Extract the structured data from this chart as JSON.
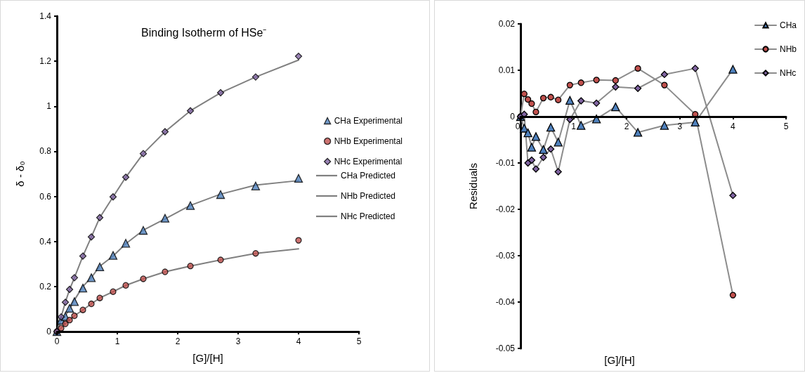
{
  "chart_data": [
    {
      "type": "scatter",
      "title": "Binding Isotherm of HSe⁻",
      "xlabel": "[G]/[H]",
      "ylabel": "δ - δ₀",
      "x": [
        0,
        0.07,
        0.14,
        0.21,
        0.29,
        0.43,
        0.57,
        0.71,
        0.93,
        1.14,
        1.43,
        1.79,
        2.21,
        2.71,
        3.29,
        4.0
      ],
      "xlim": [
        0,
        5
      ],
      "xticks": [
        0,
        1,
        2,
        3,
        4,
        5
      ],
      "ylim": [
        0,
        1.4
      ],
      "yticks": [
        0,
        0.2,
        0.4,
        0.6,
        0.8,
        1,
        1.2,
        1.4
      ],
      "grid": false,
      "legend": "right",
      "series": [
        {
          "name": "CHa Experimental",
          "marker": "triangle",
          "color": "#4f81bd",
          "values": [
            0,
            0.05,
            0.067,
            0.103,
            0.133,
            0.193,
            0.239,
            0.287,
            0.338,
            0.392,
            0.449,
            0.503,
            0.559,
            0.608,
            0.646,
            0.68
          ]
        },
        {
          "name": "NHb Experimental",
          "marker": "circle",
          "color": "#c0504d",
          "values": [
            0,
            0.015,
            0.034,
            0.051,
            0.07,
            0.096,
            0.123,
            0.149,
            0.177,
            0.205,
            0.234,
            0.265,
            0.291,
            0.318,
            0.347,
            0.405
          ]
        },
        {
          "name": "NHc Experimental",
          "marker": "diamond",
          "color": "#8064a2",
          "values": [
            0,
            0.065,
            0.13,
            0.187,
            0.239,
            0.335,
            0.42,
            0.506,
            0.598,
            0.685,
            0.79,
            0.887,
            0.98,
            1.06,
            1.13,
            1.222
          ]
        },
        {
          "name": "CHa Predicted",
          "type": "line",
          "marker": "none",
          "color": "#808080",
          "values": [
            0,
            0.05,
            0.07,
            0.1,
            0.14,
            0.2,
            0.24,
            0.29,
            0.335,
            0.39,
            0.45,
            0.5,
            0.56,
            0.61,
            0.65,
            0.67
          ]
        },
        {
          "name": "NHb Predicted",
          "type": "line",
          "marker": "none",
          "color": "#808080",
          "values": [
            0,
            0.015,
            0.034,
            0.051,
            0.07,
            0.096,
            0.123,
            0.149,
            0.177,
            0.205,
            0.234,
            0.265,
            0.291,
            0.318,
            0.347,
            0.367
          ]
        },
        {
          "name": "NHc Predicted",
          "type": "line",
          "marker": "none",
          "color": "#808080",
          "values": [
            0,
            0.065,
            0.13,
            0.187,
            0.239,
            0.335,
            0.42,
            0.506,
            0.598,
            0.685,
            0.79,
            0.887,
            0.98,
            1.06,
            1.13,
            1.205
          ]
        }
      ]
    },
    {
      "type": "line",
      "xlabel": "[G]/[H]",
      "ylabel": "Residuals",
      "x": [
        0,
        0.07,
        0.14,
        0.21,
        0.29,
        0.43,
        0.57,
        0.71,
        0.93,
        1.14,
        1.43,
        1.79,
        2.21,
        2.71,
        3.29,
        4.0
      ],
      "xlim": [
        0,
        5
      ],
      "xticks": [
        0,
        1,
        2,
        3,
        4,
        5
      ],
      "ylim": [
        -0.05,
        0.02
      ],
      "yticks": [
        -0.05,
        -0.04,
        -0.03,
        -0.02,
        -0.01,
        0,
        0.01,
        0.02
      ],
      "grid": false,
      "legend": "top right",
      "series": [
        {
          "name": "CHa",
          "marker": "triangle",
          "color": "#4f81bd",
          "values": [
            0,
            -0.0025,
            -0.0035,
            -0.0066,
            -0.0043,
            -0.0071,
            -0.0023,
            -0.0055,
            0.0035,
            -0.0019,
            -0.0005,
            0.0021,
            -0.0034,
            -0.0019,
            -0.0012,
            0.0102
          ]
        },
        {
          "name": "NHb",
          "marker": "circle",
          "color": "#c0504d",
          "values": [
            0,
            0.0049,
            0.0037,
            0.0028,
            0.001,
            0.004,
            0.0042,
            0.0036,
            0.0068,
            0.0073,
            0.0079,
            0.0078,
            0.0104,
            0.0068,
            0.0005,
            -0.0385
          ]
        },
        {
          "name": "NHc",
          "marker": "diamond",
          "color": "#8064a2",
          "values": [
            0,
            0.0005,
            -0.01,
            -0.0094,
            -0.0113,
            -0.0088,
            -0.007,
            -0.0119,
            -0.0006,
            0.0034,
            0.0029,
            0.0064,
            0.0061,
            0.0091,
            0.0104,
            -0.017
          ]
        }
      ]
    }
  ]
}
